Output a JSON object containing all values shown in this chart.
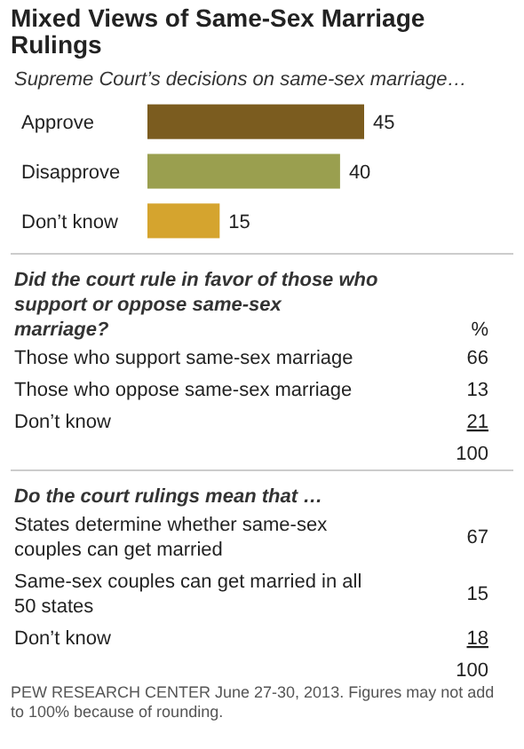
{
  "chart_data": [
    {
      "type": "bar",
      "orientation": "horizontal",
      "title": "Mixed Views of Same-Sex Marriage Rulings",
      "subtitle": "Supreme Court’s decisions on same-sex marriage…",
      "categories": [
        "Approve",
        "Disapprove",
        "Don’t know"
      ],
      "values": [
        45,
        40,
        15
      ],
      "colors": [
        "#7b5c1f",
        "#9a9f4f",
        "#d5a42e"
      ],
      "data_labels": true
    },
    {
      "type": "other",
      "title": "Did the court rule in favor of those who support or oppose same-sex marriage?",
      "categories": [
        "Those who support same-sex marriage",
        "Those who oppose same-sex marriage",
        "Don’t know"
      ],
      "values": [
        66,
        13,
        21
      ],
      "data_labels": true,
      "totals": [
        "100"
      ],
      "annotations": [
        "%"
      ]
    },
    {
      "type": "other",
      "title": "Do the court rulings mean that …",
      "categories": [
        "States determine whether same-sex couples can get married",
        "Same-sex couples can get married in all 50 states",
        "Don’t know"
      ],
      "values": [
        67,
        15,
        18
      ],
      "data_labels": true,
      "totals": [
        "100"
      ],
      "annotations": [
        "PEW RESEARCH CENTER June 27-30, 2013. Figures may not add to 100% because of rounding."
      ]
    }
  ]
}
